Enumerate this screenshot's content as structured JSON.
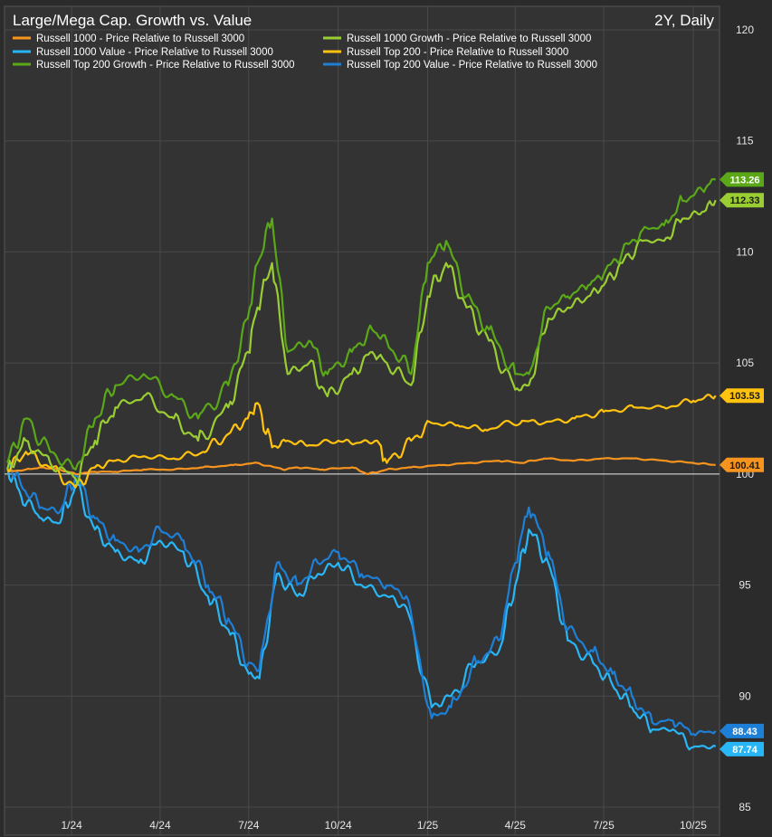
{
  "chart_data": {
    "type": "line",
    "title": "Large/Mega Cap. Growth vs. Value",
    "period_label": "2Y, Daily",
    "x_tick_labels": [
      "1/24",
      "4/24",
      "7/24",
      "10/24",
      "1/25",
      "4/25",
      "7/25",
      "10/25"
    ],
    "x_tick_dates": [
      "2024-01-01",
      "2024-04-01",
      "2024-07-01",
      "2024-10-01",
      "2025-01-01",
      "2025-04-01",
      "2025-07-01",
      "2025-10-01"
    ],
    "x_range": [
      "2023-10-24",
      "2025-10-28"
    ],
    "y_ticks": [
      85,
      90,
      95,
      100,
      105,
      110,
      115,
      120
    ],
    "ylim": [
      85,
      120
    ],
    "baseline": 100,
    "grid": true,
    "legend_position": "top",
    "series": [
      {
        "name": "Russell 1000 - Price Relative to Russell 3000",
        "color": "#f7941d",
        "last_value": 100.41,
        "x": [
          "2023-10-27",
          "2023-11-15",
          "2023-12-01",
          "2023-12-20",
          "2024-01-05",
          "2024-01-25",
          "2024-02-15",
          "2024-03-15",
          "2024-04-15",
          "2024-05-15",
          "2024-06-15",
          "2024-07-10",
          "2024-08-05",
          "2024-08-20",
          "2024-09-15",
          "2024-10-15",
          "2024-11-01",
          "2024-11-20",
          "2024-12-15",
          "2025-01-15",
          "2025-02-15",
          "2025-03-15",
          "2025-04-08",
          "2025-05-01",
          "2025-06-01",
          "2025-07-01",
          "2025-08-01",
          "2025-09-01",
          "2025-10-01",
          "2025-10-24"
        ],
        "values": [
          100.1,
          100.2,
          100.3,
          100.2,
          100.0,
          100.1,
          100.1,
          100.2,
          100.2,
          100.3,
          100.4,
          100.5,
          100.2,
          100.3,
          100.2,
          100.3,
          100.0,
          100.2,
          100.3,
          100.4,
          100.5,
          100.6,
          100.5,
          100.7,
          100.6,
          100.7,
          100.7,
          100.6,
          100.5,
          100.41
        ]
      },
      {
        "name": "Russell 1000 Growth - Price Relative to Russell 3000",
        "color": "#9acd32",
        "last_value": 112.33,
        "x": [
          "2023-10-27",
          "2023-11-15",
          "2023-12-10",
          "2024-01-05",
          "2024-01-25",
          "2024-02-15",
          "2024-03-15",
          "2024-04-15",
          "2024-05-10",
          "2024-06-10",
          "2024-06-30",
          "2024-07-10",
          "2024-07-25",
          "2024-08-10",
          "2024-09-01",
          "2024-09-20",
          "2024-10-15",
          "2024-11-05",
          "2024-11-20",
          "2024-12-15",
          "2025-01-01",
          "2025-01-20",
          "2025-02-10",
          "2025-03-05",
          "2025-04-01",
          "2025-04-15",
          "2025-05-05",
          "2025-05-25",
          "2025-06-15",
          "2025-07-01",
          "2025-07-20",
          "2025-08-10",
          "2025-09-01",
          "2025-09-20",
          "2025-10-10",
          "2025-10-24"
        ],
        "values": [
          100.2,
          101.5,
          100.5,
          99.8,
          101.5,
          103.0,
          103.5,
          102.5,
          101.5,
          103.0,
          105.5,
          107.5,
          109.5,
          104.5,
          105.0,
          103.5,
          104.5,
          105.5,
          105.0,
          104.0,
          108.0,
          109.5,
          107.5,
          106.0,
          103.8,
          104.0,
          107.0,
          107.5,
          108.0,
          108.5,
          109.5,
          110.5,
          110.5,
          111.5,
          111.8,
          112.33
        ]
      },
      {
        "name": "Russell 1000 Value - Price Relative to Russell 3000",
        "color": "#29b6f6",
        "last_value": 87.74,
        "x": [
          "2023-10-27",
          "2023-11-10",
          "2023-12-01",
          "2023-12-20",
          "2024-01-05",
          "2024-01-25",
          "2024-02-15",
          "2024-03-10",
          "2024-04-01",
          "2024-04-25",
          "2024-05-20",
          "2024-06-10",
          "2024-07-01",
          "2024-07-12",
          "2024-07-30",
          "2024-08-20",
          "2024-09-10",
          "2024-10-01",
          "2024-10-25",
          "2024-11-20",
          "2024-12-10",
          "2025-01-05",
          "2025-01-25",
          "2025-02-20",
          "2025-03-15",
          "2025-04-01",
          "2025-04-15",
          "2025-05-05",
          "2025-05-25",
          "2025-06-20",
          "2025-07-10",
          "2025-07-30",
          "2025-08-20",
          "2025-09-10",
          "2025-10-01",
          "2025-10-24"
        ],
        "values": [
          100.3,
          99.0,
          98.0,
          97.8,
          99.5,
          97.5,
          96.5,
          96.0,
          97.0,
          96.5,
          94.5,
          93.0,
          91.0,
          90.8,
          95.5,
          94.5,
          95.5,
          96.0,
          95.0,
          94.5,
          94.0,
          89.5,
          90.0,
          91.5,
          92.0,
          95.0,
          97.5,
          96.0,
          92.5,
          91.5,
          90.5,
          89.5,
          88.5,
          88.5,
          87.7,
          87.74
        ]
      },
      {
        "name": "Russell Top 200 - Price Relative to Russell 3000",
        "color": "#ffc20e",
        "last_value": 103.53,
        "x": [
          "2023-10-27",
          "2023-11-15",
          "2023-12-10",
          "2024-01-05",
          "2024-01-25",
          "2024-02-15",
          "2024-03-15",
          "2024-04-15",
          "2024-05-15",
          "2024-06-10",
          "2024-06-30",
          "2024-07-10",
          "2024-07-25",
          "2024-08-10",
          "2024-09-01",
          "2024-10-01",
          "2024-10-20",
          "2024-11-10",
          "2024-11-20",
          "2024-12-15",
          "2025-01-05",
          "2025-02-01",
          "2025-03-01",
          "2025-04-08",
          "2025-05-01",
          "2025-06-01",
          "2025-07-01",
          "2025-08-01",
          "2025-09-01",
          "2025-10-01",
          "2025-10-24"
        ],
        "values": [
          100.2,
          101.0,
          100.3,
          99.4,
          100.3,
          100.6,
          100.8,
          100.7,
          101.0,
          101.8,
          102.5,
          103.2,
          101.2,
          101.5,
          101.3,
          101.5,
          101.4,
          101.5,
          100.5,
          101.5,
          102.3,
          102.2,
          102.0,
          102.4,
          102.3,
          102.5,
          102.8,
          103.0,
          103.0,
          103.3,
          103.53
        ]
      },
      {
        "name": "Russell Top 200 Growth - Price Relative to Russell 3000",
        "color": "#5aa817",
        "last_value": 113.26,
        "x": [
          "2023-10-27",
          "2023-11-15",
          "2023-12-10",
          "2024-01-05",
          "2024-01-25",
          "2024-02-15",
          "2024-03-15",
          "2024-04-15",
          "2024-05-10",
          "2024-06-10",
          "2024-06-30",
          "2024-07-10",
          "2024-07-25",
          "2024-08-10",
          "2024-09-01",
          "2024-09-20",
          "2024-10-15",
          "2024-11-05",
          "2024-11-20",
          "2024-12-15",
          "2025-01-01",
          "2025-01-20",
          "2025-02-10",
          "2025-03-05",
          "2025-04-01",
          "2025-04-15",
          "2025-05-05",
          "2025-05-25",
          "2025-06-15",
          "2025-07-01",
          "2025-07-20",
          "2025-08-10",
          "2025-09-01",
          "2025-09-20",
          "2025-10-10",
          "2025-10-24"
        ],
        "values": [
          100.5,
          102.5,
          101.0,
          100.2,
          102.5,
          104.0,
          104.5,
          103.5,
          102.5,
          104.0,
          107.0,
          109.5,
          111.5,
          105.5,
          106.0,
          104.5,
          105.5,
          106.5,
          106.0,
          104.5,
          109.5,
          110.5,
          108.0,
          106.5,
          104.5,
          104.5,
          107.5,
          108.0,
          108.5,
          109.0,
          110.0,
          111.0,
          111.2,
          112.3,
          112.8,
          113.26
        ]
      },
      {
        "name": "Russell Top 200 Value - Price Relative to Russell 3000",
        "color": "#1e7fd6",
        "last_value": 88.43,
        "x": [
          "2023-10-27",
          "2023-11-10",
          "2023-12-01",
          "2023-12-20",
          "2024-01-05",
          "2024-01-25",
          "2024-02-15",
          "2024-03-10",
          "2024-04-01",
          "2024-04-25",
          "2024-05-20",
          "2024-06-10",
          "2024-07-01",
          "2024-07-12",
          "2024-07-30",
          "2024-08-20",
          "2024-09-10",
          "2024-10-01",
          "2024-10-25",
          "2024-11-20",
          "2024-12-10",
          "2025-01-05",
          "2025-01-25",
          "2025-02-20",
          "2025-03-15",
          "2025-04-01",
          "2025-04-15",
          "2025-05-05",
          "2025-05-25",
          "2025-06-20",
          "2025-07-10",
          "2025-07-30",
          "2025-08-20",
          "2025-09-10",
          "2025-10-01",
          "2025-10-24"
        ],
        "values": [
          100.6,
          99.5,
          98.5,
          98.3,
          100.0,
          98.0,
          97.0,
          96.5,
          97.5,
          97.0,
          95.0,
          93.5,
          91.5,
          91.2,
          96.0,
          95.0,
          96.0,
          96.5,
          95.5,
          95.0,
          94.5,
          89.0,
          89.5,
          91.5,
          92.5,
          96.0,
          98.5,
          96.5,
          93.0,
          92.0,
          91.0,
          90.0,
          88.8,
          88.9,
          88.3,
          88.43
        ]
      }
    ]
  }
}
